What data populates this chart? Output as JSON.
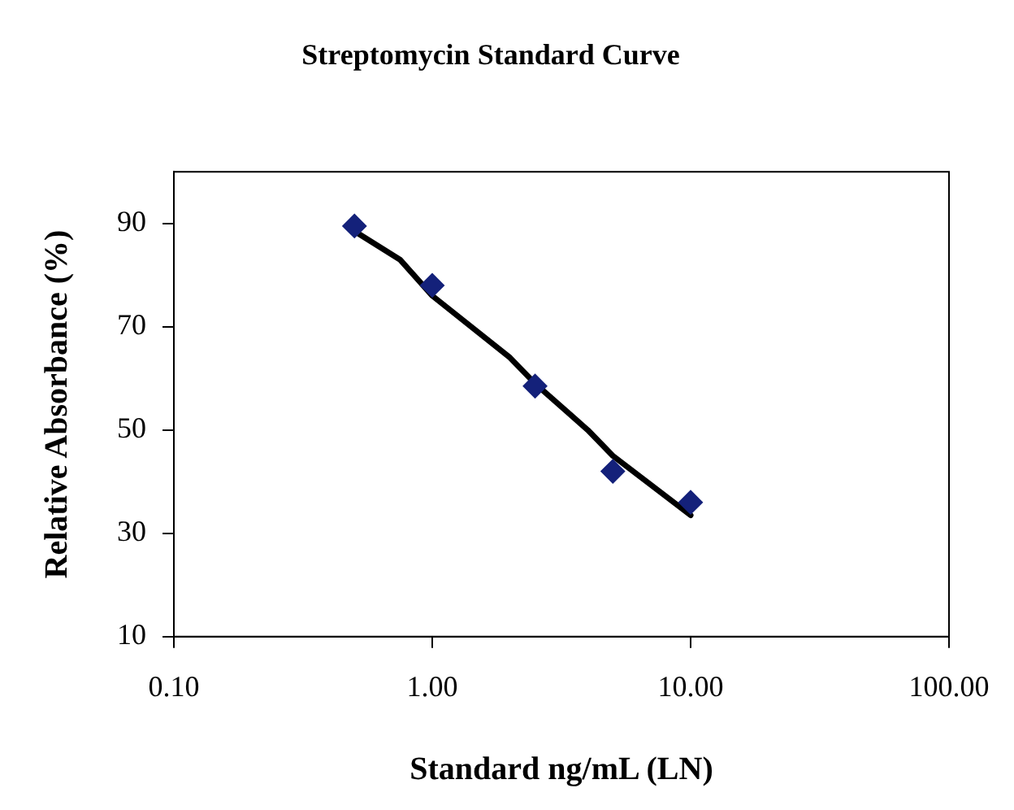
{
  "chart_data": {
    "type": "scatter",
    "title": "Streptomycin Standard Curve",
    "xlabel": "Standard ng/mL (LN)",
    "ylabel": "Relative Absorbance (%)",
    "log": "x",
    "xlim": [
      0.1,
      100
    ],
    "xticks": [
      {
        "value": 0.1,
        "label": "0.10"
      },
      {
        "value": 1,
        "label": "1.00"
      },
      {
        "value": 10,
        "label": "10.00"
      },
      {
        "value": 100,
        "label": "100.00"
      }
    ],
    "ylim": [
      10,
      100
    ],
    "yticks": [
      10,
      30,
      50,
      70,
      90
    ],
    "grid": false,
    "legend": false,
    "marker": "diamond",
    "series": [
      {
        "color": "#14217a",
        "x": [
          0.5,
          1,
          2.5,
          5,
          10
        ],
        "values": [
          89.5,
          78,
          58.5,
          42,
          36
        ]
      },
      {
        "type": "line",
        "marker": "none",
        "color": "#000000",
        "x": [
          0.5,
          0.75,
          1,
          2,
          2.5,
          4,
          5,
          10
        ],
        "values": [
          88.5,
          83,
          76,
          64,
          59,
          50,
          45,
          33.5
        ]
      }
    ]
  }
}
